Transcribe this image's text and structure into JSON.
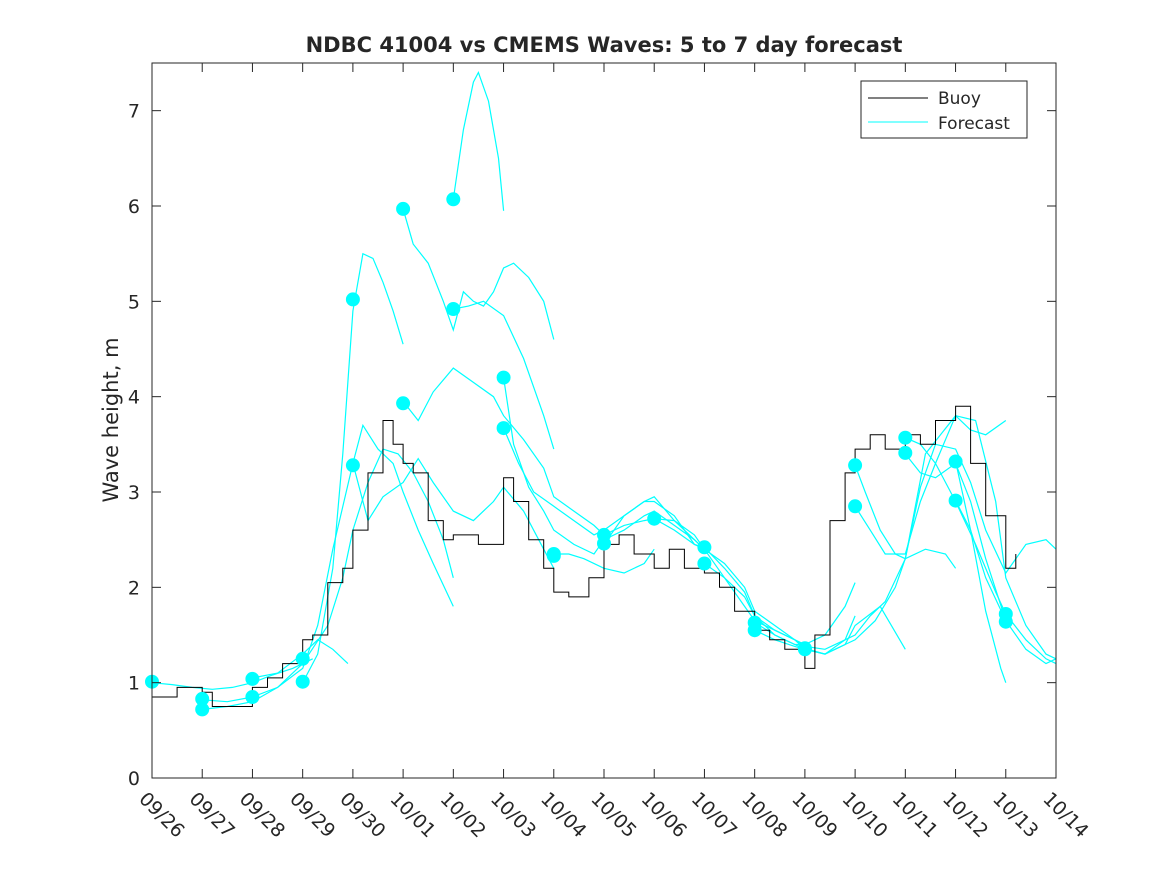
{
  "chart_data": {
    "type": "line",
    "title": "NDBC 41004 vs CMEMS Waves: 5 to 7 day forecast",
    "xlabel": "",
    "ylabel": "Wave height, m",
    "xlim": [
      0,
      18
    ],
    "ylim": [
      0,
      7.5
    ],
    "x_tick_values": [
      0,
      1,
      2,
      3,
      4,
      5,
      6,
      7,
      8,
      9,
      10,
      11,
      12,
      13,
      14,
      15,
      16,
      17,
      18
    ],
    "x_tick_labels": [
      "09/26",
      "09/27",
      "09/28",
      "09/29",
      "09/30",
      "10/01",
      "10/02",
      "10/03",
      "10/04",
      "10/05",
      "10/06",
      "10/07",
      "10/08",
      "10/09",
      "10/10",
      "10/11",
      "10/12",
      "10/13",
      "10/14"
    ],
    "y_tick_values": [
      0,
      1,
      2,
      3,
      4,
      5,
      6,
      7
    ],
    "y_tick_labels": [
      "0",
      "1",
      "2",
      "3",
      "4",
      "5",
      "6",
      "7"
    ],
    "legend": {
      "position": "top-right",
      "entries": [
        "Buoy",
        "Forecast"
      ]
    },
    "colors": {
      "buoy": "#000000",
      "forecast": "#00ffff",
      "axes": "#262626"
    },
    "buoy": {
      "name": "Buoy",
      "x": [
        0,
        0.5,
        1,
        1.2,
        1.5,
        2,
        2.3,
        2.6,
        3,
        3.2,
        3.5,
        3.8,
        4,
        4.3,
        4.6,
        4.8,
        5,
        5.2,
        5.5,
        5.8,
        6,
        6.5,
        7,
        7.2,
        7.5,
        7.8,
        8,
        8.3,
        8.7,
        9,
        9.3,
        9.6,
        10,
        10.3,
        10.6,
        11,
        11.3,
        11.6,
        12,
        12.3,
        12.6,
        13,
        13.2,
        13.5,
        13.8,
        14,
        14.3,
        14.6,
        15,
        15.3,
        15.6,
        16,
        16.3,
        16.6,
        17,
        17.2
      ],
      "y": [
        0.85,
        0.95,
        0.9,
        0.75,
        0.75,
        0.95,
        1.05,
        1.2,
        1.45,
        1.5,
        2.05,
        2.2,
        2.6,
        3.2,
        3.75,
        3.5,
        3.3,
        3.2,
        2.7,
        2.5,
        2.55,
        2.45,
        3.15,
        2.9,
        2.5,
        2.2,
        1.95,
        1.9,
        2.1,
        2.45,
        2.55,
        2.35,
        2.2,
        2.4,
        2.2,
        2.15,
        2.0,
        1.75,
        1.55,
        1.45,
        1.35,
        1.15,
        1.5,
        2.7,
        3.2,
        3.45,
        3.6,
        3.45,
        3.6,
        3.5,
        3.75,
        3.9,
        3.3,
        2.75,
        2.2,
        2.35
      ]
    },
    "forecasts": [
      {
        "name": "Forecast",
        "x": [
          0,
          0.4,
          0.8,
          1.2,
          1.6,
          2,
          2.4,
          2.8,
          3.2
        ],
        "y": [
          1.0,
          0.98,
          0.95,
          0.93,
          0.95,
          1.0,
          1.08,
          1.15,
          1.25
        ]
      },
      {
        "name": "Forecast",
        "x": [
          1,
          1.5,
          2,
          2.5,
          3,
          3.5,
          3.8,
          4,
          4.3,
          4.6,
          4.9,
          5.2,
          5.5,
          5.8,
          6
        ],
        "y": [
          0.82,
          0.8,
          0.85,
          0.95,
          1.2,
          1.6,
          2.1,
          2.6,
          3.1,
          3.45,
          3.4,
          3.2,
          2.9,
          2.5,
          2.1
        ]
      },
      {
        "name": "Forecast",
        "x": [
          1,
          1.5,
          2,
          2.5,
          3,
          3.3,
          3.6,
          4,
          4.2,
          4.5,
          4.8,
          5,
          5.3,
          5.6,
          6
        ],
        "y": [
          0.72,
          0.75,
          0.8,
          0.95,
          1.15,
          1.6,
          2.4,
          3.3,
          3.7,
          3.45,
          3.3,
          3.0,
          2.6,
          2.25,
          1.8
        ]
      },
      {
        "name": "Forecast",
        "x": [
          2,
          2.5,
          3,
          3.3,
          3.6,
          3.9
        ],
        "y": [
          1.05,
          1.1,
          1.3,
          1.45,
          1.35,
          1.2
        ]
      },
      {
        "name": "Forecast",
        "x": [
          3,
          3.3,
          3.6,
          3.8,
          4,
          4.2,
          4.4,
          4.6,
          4.8,
          5
        ],
        "y": [
          1.0,
          1.3,
          2.2,
          3.4,
          4.9,
          5.5,
          5.45,
          5.2,
          4.9,
          4.55
        ]
      },
      {
        "name": "Forecast",
        "x": [
          4,
          4.3,
          4.6,
          5,
          5.3,
          5.6,
          6,
          6.4,
          6.8,
          7,
          7.4,
          7.8,
          8
        ],
        "y": [
          3.3,
          2.7,
          2.95,
          3.1,
          3.35,
          3.1,
          2.8,
          2.7,
          2.9,
          3.05,
          2.8,
          2.4,
          2.2
        ]
      },
      {
        "name": "Forecast",
        "x": [
          5,
          5.3,
          5.6,
          6,
          6.4,
          6.8,
          7,
          7.4,
          7.8,
          8,
          8.4,
          8.8,
          9
        ],
        "y": [
          3.95,
          3.75,
          4.05,
          4.3,
          4.15,
          4.0,
          3.8,
          3.55,
          3.25,
          2.95,
          2.8,
          2.65,
          2.55
        ]
      },
      {
        "name": "Forecast",
        "x": [
          5,
          5.2,
          5.5,
          5.8,
          6,
          6.2,
          6.4,
          6.6,
          6.8,
          7,
          7.2,
          7.5,
          7.8,
          8
        ],
        "y": [
          5.97,
          5.6,
          5.4,
          5.0,
          4.7,
          5.1,
          5.0,
          4.95,
          5.1,
          5.35,
          5.4,
          5.25,
          5.0,
          4.6
        ]
      },
      {
        "name": "Forecast",
        "x": [
          6,
          6.2,
          6.4,
          6.5,
          6.7,
          6.9,
          7
        ],
        "y": [
          6.07,
          6.8,
          7.3,
          7.4,
          7.1,
          6.5,
          5.95
        ]
      },
      {
        "name": "Forecast",
        "x": [
          6,
          6.3,
          6.6,
          7,
          7.4,
          7.8,
          8
        ],
        "y": [
          4.92,
          4.95,
          5.0,
          4.85,
          4.4,
          3.8,
          3.45
        ]
      },
      {
        "name": "Forecast",
        "x": [
          7,
          7.2,
          7.5,
          7.8,
          8,
          8.4,
          8.8,
          9,
          9.4,
          9.8,
          10,
          10.4,
          10.8,
          11
        ],
        "y": [
          4.2,
          3.5,
          3.05,
          2.8,
          2.6,
          2.45,
          2.35,
          2.5,
          2.6,
          2.75,
          2.8,
          2.65,
          2.5,
          2.4
        ]
      },
      {
        "name": "Forecast",
        "x": [
          7,
          7.3,
          7.6,
          8,
          8.4,
          8.8,
          9,
          9.4,
          9.8,
          10,
          10.4,
          10.8,
          11
        ],
        "y": [
          3.67,
          3.3,
          3.0,
          2.85,
          2.7,
          2.55,
          2.6,
          2.75,
          2.9,
          2.95,
          2.7,
          2.5,
          2.4
        ]
      },
      {
        "name": "Forecast",
        "x": [
          8,
          8.3,
          8.6,
          9,
          9.4,
          9.8,
          10
        ],
        "y": [
          2.35,
          2.35,
          2.3,
          2.2,
          2.15,
          2.25,
          2.4
        ]
      },
      {
        "name": "Forecast",
        "x": [
          9,
          9.4,
          9.8,
          10,
          10.4,
          10.8,
          11,
          11.4,
          11.8,
          12,
          12.4,
          12.8,
          13
        ],
        "y": [
          2.45,
          2.75,
          2.9,
          2.9,
          2.75,
          2.45,
          2.4,
          2.1,
          1.8,
          1.65,
          1.55,
          1.45,
          1.4
        ]
      },
      {
        "name": "Forecast",
        "x": [
          9,
          9.4,
          9.8,
          10,
          10.4,
          10.8,
          11,
          11.4,
          11.8,
          12,
          12.4,
          12.8,
          13
        ],
        "y": [
          2.55,
          2.65,
          2.7,
          2.72,
          2.7,
          2.55,
          2.4,
          2.25,
          2.0,
          1.75,
          1.6,
          1.45,
          1.35
        ]
      },
      {
        "name": "Forecast",
        "x": [
          10,
          10.4,
          10.8,
          11,
          11.4,
          11.8,
          12,
          12.4,
          12.8,
          13,
          13.4,
          13.8,
          14
        ],
        "y": [
          2.72,
          2.6,
          2.45,
          2.42,
          2.2,
          1.95,
          1.7,
          1.55,
          1.45,
          1.38,
          1.35,
          1.45,
          1.7
        ]
      },
      {
        "name": "Forecast",
        "x": [
          11,
          11.4,
          11.8,
          12,
          12.4,
          12.8,
          13,
          13.4,
          13.8,
          14
        ],
        "y": [
          2.25,
          2.1,
          1.9,
          1.7,
          1.5,
          1.4,
          1.4,
          1.5,
          1.8,
          2.05
        ]
      },
      {
        "name": "Forecast",
        "x": [
          12,
          12.4,
          12.8,
          13,
          13.4,
          13.8,
          14,
          14.5,
          15
        ],
        "y": [
          1.55,
          1.45,
          1.38,
          1.35,
          1.3,
          1.4,
          1.6,
          1.8,
          1.35
        ]
      },
      {
        "name": "Forecast",
        "x": [
          12,
          12.4,
          12.8,
          13,
          13.4,
          13.8,
          14,
          14.4,
          14.8,
          15,
          15.4,
          15.8,
          16
        ],
        "y": [
          1.63,
          1.5,
          1.4,
          1.35,
          1.3,
          1.4,
          1.45,
          1.65,
          2.0,
          2.3,
          2.4,
          2.35,
          2.2
        ]
      },
      {
        "name": "Forecast",
        "x": [
          13,
          13.4,
          13.8,
          14,
          14.3,
          14.6,
          15,
          15.4,
          15.7,
          16,
          16.3,
          16.6,
          17
        ],
        "y": [
          1.36,
          1.3,
          1.45,
          1.5,
          1.7,
          1.85,
          2.3,
          3.4,
          3.6,
          3.8,
          3.65,
          3.6,
          3.75
        ]
      },
      {
        "name": "Forecast",
        "x": [
          14,
          14.2,
          14.5,
          14.8,
          15,
          15.3,
          15.6,
          16,
          16.3,
          16.6,
          17,
          17.4,
          17.8,
          18
        ],
        "y": [
          3.28,
          3.0,
          2.6,
          2.35,
          2.3,
          3.05,
          3.5,
          3.45,
          3.1,
          2.6,
          2.15,
          2.45,
          2.5,
          2.4
        ]
      },
      {
        "name": "Forecast",
        "x": [
          14,
          14.3,
          14.6,
          15,
          15.3,
          15.6,
          16,
          16.4,
          16.8,
          17,
          17.4,
          17.8,
          18
        ],
        "y": [
          2.85,
          2.6,
          2.35,
          2.35,
          2.9,
          3.3,
          3.8,
          3.75,
          2.9,
          2.1,
          1.6,
          1.3,
          1.25
        ]
      },
      {
        "name": "Forecast",
        "x": [
          15,
          15.3,
          15.6,
          16,
          16.4,
          16.8,
          17,
          17.4,
          17.8,
          18
        ],
        "y": [
          3.57,
          3.5,
          3.3,
          2.9,
          2.45,
          1.95,
          1.72,
          1.45,
          1.25,
          1.2
        ]
      },
      {
        "name": "Forecast",
        "x": [
          15,
          15.3,
          15.6,
          16,
          16.3,
          16.6,
          17
        ],
        "y": [
          3.4,
          3.2,
          3.15,
          3.3,
          2.9,
          2.3,
          1.65
        ]
      },
      {
        "name": "Forecast",
        "x": [
          16,
          16.3,
          16.6,
          16.9,
          17
        ],
        "y": [
          3.32,
          2.6,
          1.75,
          1.15,
          1.0
        ]
      },
      {
        "name": "Forecast",
        "x": [
          16,
          16.3,
          16.6,
          17,
          17.4,
          17.8,
          18
        ],
        "y": [
          2.91,
          2.6,
          2.1,
          1.65,
          1.35,
          1.2,
          1.25
        ]
      }
    ],
    "markers": {
      "x": [
        0,
        1,
        1,
        2,
        2,
        3,
        3,
        4,
        4,
        5,
        5,
        6,
        6,
        7,
        7,
        8,
        8,
        9,
        9,
        10,
        11,
        11,
        12,
        12,
        13,
        13,
        14,
        14,
        15,
        15,
        16,
        16,
        17,
        17
      ],
      "y": [
        1.01,
        0.83,
        0.72,
        1.04,
        0.85,
        1.25,
        1.01,
        5.02,
        3.28,
        5.97,
        3.93,
        6.07,
        4.92,
        4.2,
        3.67,
        2.35,
        2.33,
        2.55,
        2.46,
        2.72,
        2.42,
        2.25,
        1.63,
        1.55,
        1.36,
        1.35,
        3.28,
        2.85,
        3.57,
        3.41,
        3.32,
        2.91,
        1.72,
        1.64
      ]
    }
  }
}
